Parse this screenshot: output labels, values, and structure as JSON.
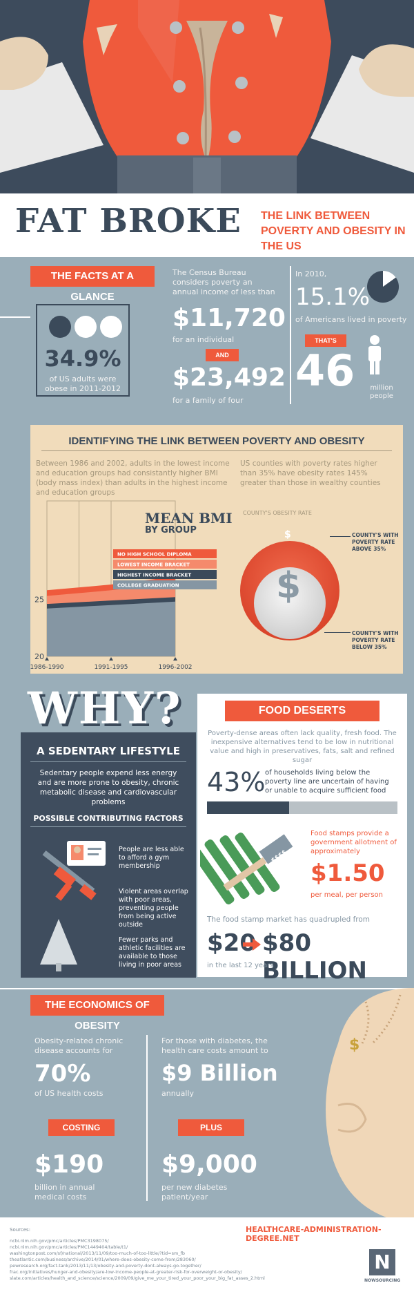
{
  "title": {
    "main": "FAT BROKE",
    "subtitle": "THE LINK BETWEEN POVERTY AND OBESITY IN THE US"
  },
  "facts": {
    "banner": "THE FACTS AT A GLANCE",
    "obese_pct": "34.9%",
    "obese_text": "of US adults were obese in 2011-2012",
    "census_text": "The Census Bureau considers poverty an annual income of less than",
    "individual_amount": "$11,720",
    "individual_label": "for an individual",
    "and_label": "AND",
    "family_amount": "$23,492",
    "family_label": "for a family of four",
    "year_text": "In 2010,",
    "poverty_pct": "15.1%",
    "poverty_text": "of Americans lived in poverty",
    "thats_label": "THAT'S",
    "million_num": "46",
    "million_label": "million people",
    "pie_fraction": 0.151
  },
  "link": {
    "title": "IDENTIFYING THE LINK BETWEEN POVERTY AND OBESITY",
    "left_text": "Between 1986 and 2002, adults in the lowest income and education groups had consistantly higher BMI (body mass index) than adults in the highest income and education groups",
    "right_text": "US counties with poverty rates higher than 35% have obesity rates 145% greater than those in wealthy counties",
    "county_title": "COUNTY'S OBESITY RATE",
    "above_label": "COUNTY'S WITH POVERTY RATE ABOVE 35%",
    "below_label": "COUNTY'S WITH POVERTY RATE BELOW 35%",
    "dollar": "$"
  },
  "chart_data": {
    "type": "area",
    "title": "MEAN BMI",
    "subtitle": "BY GROUP",
    "categories": [
      "1986-1990",
      "1991-1995",
      "1996-2002"
    ],
    "ylim": [
      20,
      30
    ],
    "yticks": [
      "25",
      "20"
    ],
    "series": [
      {
        "name": "NO HIGH SCHOOL DIPLOMA",
        "values": [
          25.8,
          26.3,
          27.0
        ],
        "color": "#ef5a3c"
      },
      {
        "name": "LOWEST INCOME BRACKET",
        "values": [
          25.3,
          25.8,
          26.4
        ],
        "color": "#f58a6c"
      },
      {
        "name": "HIGHEST INCOME BRACKET",
        "values": [
          24.6,
          24.9,
          25.2
        ],
        "color": "#3b4a5a"
      },
      {
        "name": "COLLEGE GRADUATION",
        "values": [
          24.2,
          24.5,
          24.8
        ],
        "color": "#8596a3"
      }
    ]
  },
  "why": {
    "title": "WHY?",
    "sedentary_title": "A SEDENTARY LIFESTYLE",
    "sedentary_text": "Sedentary people expend less energy and are more prone to obesity, chronic metabolic disease and cardiovascular problems",
    "factors_title": "POSSIBLE CONTRIBUTING FACTORS",
    "factor_1": "People are less able to afford a gym membership",
    "factor_2": "Violent areas overlap with poor areas, preventing people from being active outside",
    "factor_3": "Fewer parks and athletic facilities are available to those living in poor areas"
  },
  "food": {
    "banner": "FOOD DESERTS",
    "intro": "Poverty-dense areas often lack quality, fresh food. The inexpensive alternatives tend to be low in nutritional value and high in preservatives, fats, salt and refined sugar",
    "pct": "43%",
    "pct_text": "of households living below the poverty line are uncertain of having or unable to acquire sufficient food",
    "pct_value": 0.43,
    "tag": "$$$$",
    "stamps_text": "Food stamps provide a government allotment of approximately",
    "stamps_amount": "$1.50",
    "stamps_label": "per meal, per person",
    "market_text": "The food stamp market has quadrupled from",
    "market_from": "$20",
    "market_to": "$80 BILLION",
    "market_label": "in the last 12 years"
  },
  "economics": {
    "banner": "THE ECONOMICS OF OBESITY",
    "chronic_text": "Obesity-related chronic disease accounts for",
    "chronic_pct": "70%",
    "chronic_label": "of US health costs",
    "costing_label": "COSTING",
    "costing_amount": "$190",
    "costing_text": "billion in annual medical costs",
    "diabetes_text": "For those with diabetes, the health care costs amount to",
    "diabetes_amount": "$9 Billion",
    "diabetes_label": "annually",
    "plus_label": "PLUS",
    "plus_amount": "$9,000",
    "plus_text": "per new diabetes patient/year",
    "belly_dollar": "$"
  },
  "footer": {
    "sources_label": "Sources:",
    "site": "HEALTHCARE-ADMINISTRATION-DEGREE.NET",
    "brand": "NOWSOURCING",
    "logo_letter": "N",
    "sources": [
      "ncbi.nlm.nih.gov/pmc/articles/PMC3198075/",
      "ncbi.nlm.nih.gov/pmc/articles/PMC1449404/table/t1/",
      "washingtonpost.com/sf/national/2013/11/09/too-much-of-too-little/?tid=sm_fb",
      "theatlantic.com/business/archive/2014/01/where-does-obesity-come-from/283060/",
      "pewresearch.org/fact-tank/2013/11/13/obesity-and-poverty-dont-always-go-together/",
      "frac.org/initiatives/hunger-and-obesity/are-low-income-people-at-greater-risk-for-overweight-or-obesity/",
      "slate.com/articles/health_and_science/science/2009/09/give_me_your_tired_your_poor_your_big_fat_asses_2.html"
    ]
  }
}
